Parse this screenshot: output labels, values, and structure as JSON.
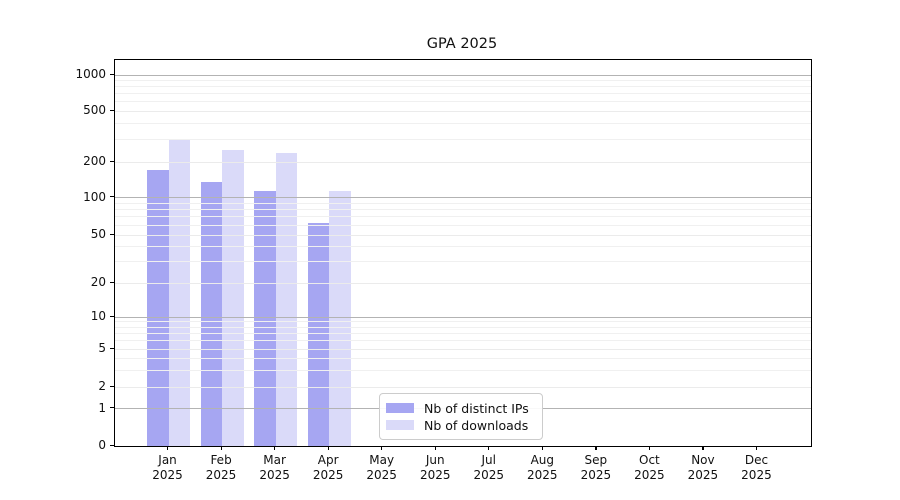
{
  "title": "GPA 2025",
  "chart_data": {
    "type": "bar",
    "title": "GPA 2025",
    "xlabel": "",
    "ylabel": "",
    "yscale": "symlog",
    "grid": true,
    "legend_position": "lower center",
    "categories": [
      "Jan",
      "Feb",
      "Mar",
      "Apr",
      "May",
      "Jun",
      "Jul",
      "Aug",
      "Sep",
      "Oct",
      "Nov",
      "Dec"
    ],
    "category_year": "2025",
    "yticks": [
      0,
      1,
      2,
      5,
      10,
      20,
      50,
      100,
      200,
      500,
      1000
    ],
    "ylim": [
      0,
      1000
    ],
    "series": [
      {
        "name": "Nb of distinct IPs",
        "color": "#a6a6f2",
        "values": [
          170,
          136,
          114,
          62,
          0,
          0,
          0,
          0,
          0,
          0,
          0,
          0
        ]
      },
      {
        "name": "Nb of downloads",
        "color": "#dadaf9",
        "values": [
          295,
          250,
          235,
          114,
          0,
          0,
          0,
          0,
          0,
          0,
          0,
          0
        ]
      }
    ],
    "minor_gridlines": [
      3,
      4,
      6,
      7,
      8,
      9,
      30,
      40,
      60,
      70,
      80,
      90,
      300,
      400,
      600,
      700,
      800,
      900
    ],
    "major_gridlines": [
      1,
      10,
      100,
      1000
    ],
    "colors": {
      "axis": "#000000",
      "grid_major": "#b3b3b3",
      "grid_minor": "#ebebeb",
      "text": "#111111",
      "background": "#ffffff"
    }
  }
}
